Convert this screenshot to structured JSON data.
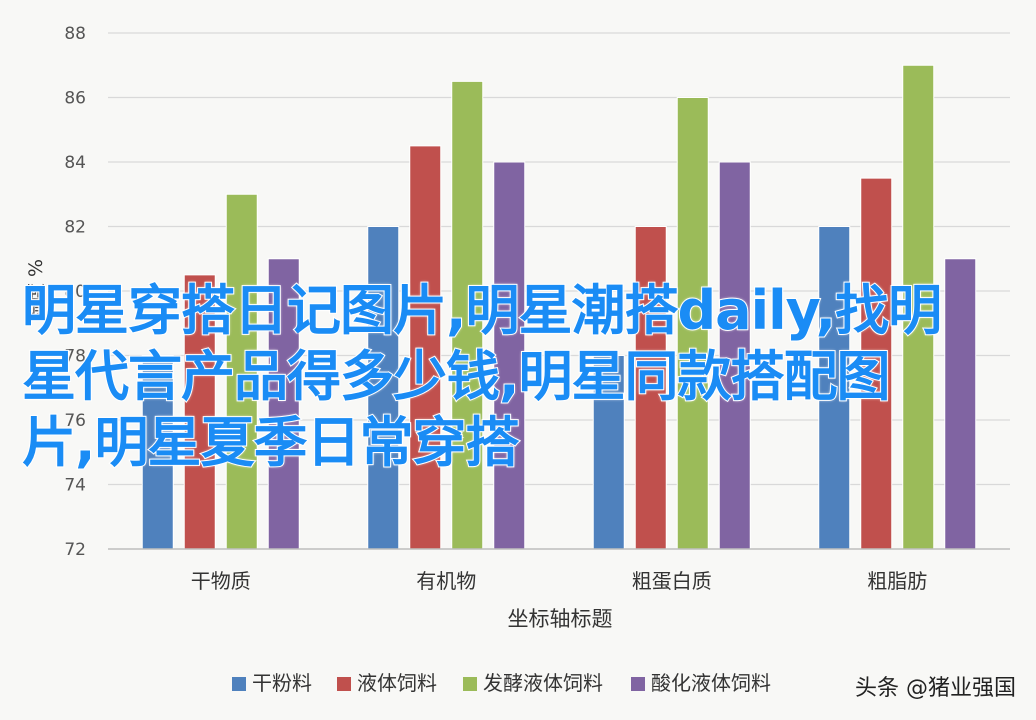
{
  "chart_data": {
    "type": "bar",
    "title": "",
    "xlabel": "坐标轴标题",
    "ylabel": "湿度 %",
    "ylim": [
      72,
      88
    ],
    "yticks": [
      72,
      74,
      76,
      78,
      80,
      82,
      84,
      86,
      88
    ],
    "categories": [
      "干物质",
      "有机物",
      "粗蛋白质",
      "粗脂肪"
    ],
    "series": [
      {
        "name": "干粉料",
        "color": "#4f81bd",
        "values": [
          78,
          82,
          78,
          82
        ]
      },
      {
        "name": "液体饲料",
        "color": "#c0504d",
        "values": [
          80.5,
          84.5,
          82,
          83.5
        ]
      },
      {
        "name": "发酵液体饲料",
        "color": "#9bbb59",
        "values": [
          83,
          86.5,
          86,
          87
        ]
      },
      {
        "name": "酸化液体饲料",
        "color": "#8064a2",
        "values": [
          81,
          84,
          84,
          81
        ]
      }
    ],
    "grid": true,
    "legend_position": "bottom"
  },
  "overlay": {
    "text": "明星穿搭日记图片,明星潮搭daily,找明星代言产品得多少钱,明星同款搭配图片,明星夏季日常穿搭"
  },
  "watermark": {
    "text": "头条 @猪业强国"
  }
}
